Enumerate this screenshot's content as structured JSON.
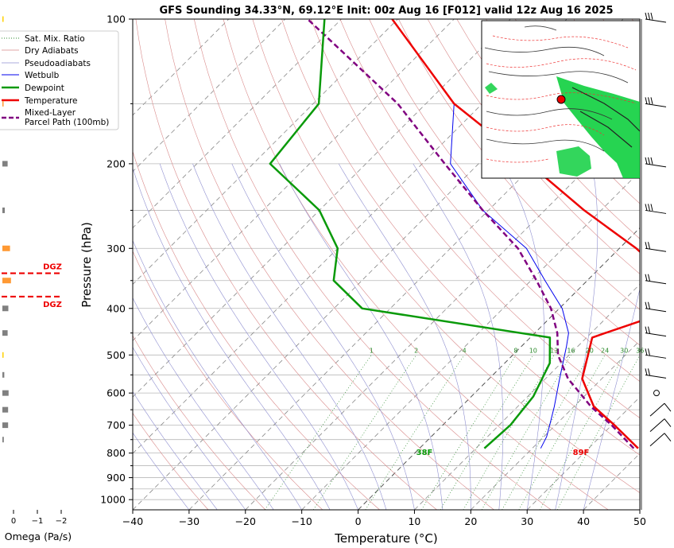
{
  "title": "GFS Sounding 34.33°N, 69.12°E Init: 00z Aug 16 [F012] valid 12z Aug 16 2025",
  "chart_data": {
    "type": "line",
    "chart_kind": "skew-T log-P sounding",
    "xlabel": "Temperature (°C)",
    "ylabel": "Pressure (hPa)",
    "x_ticks": [
      -40,
      -30,
      -20,
      -10,
      0,
      10,
      20,
      30,
      40,
      50
    ],
    "x_tick_labels": [
      "−40",
      "−30",
      "−20",
      "−10",
      "0",
      "10",
      "20",
      "30",
      "40",
      "50"
    ],
    "y_ticks": [
      100,
      200,
      300,
      400,
      500,
      600,
      700,
      800,
      900,
      1000
    ],
    "y_tick_labels": [
      "100",
      "200",
      "300",
      "400",
      "500",
      "600",
      "700",
      "800",
      "900",
      "1000"
    ],
    "y_minor_ticks": [
      150,
      250,
      350,
      450,
      550,
      650,
      750,
      850,
      950
    ],
    "xlim": [
      -40,
      50
    ],
    "ylim": [
      1050,
      100
    ],
    "y_scale": "log",
    "grid": true,
    "legend_position": "upper-left",
    "legend": [
      {
        "label": "Sat. Mix. Ratio",
        "color": "#2e8b2e",
        "style": "dotted"
      },
      {
        "label": "Dry Adiabats",
        "color": "#d98a8a",
        "style": "solid-thin"
      },
      {
        "label": "Pseudoadiabats",
        "color": "#8f8fd0",
        "style": "solid-thin"
      },
      {
        "label": "Wetbulb",
        "color": "#0000ee",
        "style": "solid"
      },
      {
        "label": "Dewpoint",
        "color": "#0a9a0a",
        "style": "solid-thick"
      },
      {
        "label": "Temperature",
        "color": "#ee0000",
        "style": "solid-thick"
      },
      {
        "label": "Mixed-Layer\nParcel Path (100mb)",
        "color": "#800080",
        "style": "dashed"
      }
    ],
    "series": [
      {
        "name": "Temperature",
        "color": "#ee0000",
        "points": [
          [
            782,
            38.8
          ],
          [
            700,
            30.5
          ],
          [
            640,
            23.5
          ],
          [
            560,
            16.5
          ],
          [
            460,
            11
          ],
          [
            450,
            12.5
          ],
          [
            400,
            21
          ],
          [
            350,
            15
          ],
          [
            300,
            3
          ],
          [
            250,
            -13
          ],
          [
            200,
            -31
          ],
          [
            150,
            -55
          ],
          [
            100,
            -81
          ]
        ]
      },
      {
        "name": "Dewpoint",
        "color": "#0a9a0a",
        "points": [
          [
            782,
            11.5
          ],
          [
            700,
            12
          ],
          [
            610,
            11
          ],
          [
            520,
            8
          ],
          [
            460,
            3.5
          ],
          [
            400,
            -35
          ],
          [
            350,
            -45
          ],
          [
            300,
            -50
          ],
          [
            250,
            -60
          ],
          [
            200,
            -77
          ],
          [
            150,
            -79
          ],
          [
            100,
            -93
          ]
        ]
      },
      {
        "name": "Wetbulb",
        "color": "#0000ee",
        "points": [
          [
            782,
            21.5
          ],
          [
            740,
            20.5
          ],
          [
            700,
            19
          ],
          [
            640,
            16.5
          ],
          [
            560,
            12.5
          ],
          [
            480,
            8
          ],
          [
            450,
            6
          ],
          [
            400,
            0.5
          ],
          [
            350,
            -7.5
          ],
          [
            300,
            -16.5
          ],
          [
            250,
            -31
          ],
          [
            200,
            -45
          ],
          [
            150,
            -55
          ]
        ]
      },
      {
        "name": "Mixed-Layer Parcel Path (100mb)",
        "color": "#800080",
        "points": [
          [
            782,
            38
          ],
          [
            700,
            30
          ],
          [
            640,
            23
          ],
          [
            560,
            14
          ],
          [
            500,
            8
          ],
          [
            450,
            4
          ],
          [
            400,
            -1.5
          ],
          [
            350,
            -9
          ],
          [
            300,
            -18
          ],
          [
            250,
            -31
          ],
          [
            200,
            -46
          ],
          [
            150,
            -65
          ],
          [
            100,
            -96
          ]
        ]
      }
    ],
    "mixing_ratio_labels": [
      "1",
      "2",
      "4",
      "8",
      "10",
      "13",
      "16",
      "20",
      "24",
      "30",
      "36"
    ],
    "annotations": [
      {
        "text": "38F",
        "pressure": 800,
        "color": "#0a9a0a"
      },
      {
        "text": "89F",
        "pressure": 800,
        "color": "#ee0000"
      }
    ],
    "omega_panel": {
      "xlabel": "Omega (Pa/s)",
      "x_ticks": [
        0,
        -1,
        -2
      ],
      "x_tick_labels": [
        "0",
        "−1",
        "−2"
      ],
      "dgz_label": "DGZ",
      "bars": [
        {
          "p": 100,
          "omega": -0.05,
          "color": "#ffd000"
        },
        {
          "p": 150,
          "omega": -0.03,
          "color": "#ff9933"
        },
        {
          "p": 200,
          "omega": -0.22,
          "color": "#808080"
        },
        {
          "p": 250,
          "omega": -0.1,
          "color": "#808080"
        },
        {
          "p": 300,
          "omega": -0.32,
          "color": "#ff9933"
        },
        {
          "p": 350,
          "omega": -0.36,
          "color": "#ff9933"
        },
        {
          "p": 400,
          "omega": -0.25,
          "color": "#808080"
        },
        {
          "p": 450,
          "omega": -0.22,
          "color": "#808080"
        },
        {
          "p": 500,
          "omega": -0.02,
          "color": "#ffd000"
        },
        {
          "p": 550,
          "omega": -0.08,
          "color": "#808080"
        },
        {
          "p": 600,
          "omega": -0.26,
          "color": "#808080"
        },
        {
          "p": 650,
          "omega": -0.24,
          "color": "#808080"
        },
        {
          "p": 700,
          "omega": -0.24,
          "color": "#808080"
        },
        {
          "p": 750,
          "omega": -0.06,
          "color": "#808080"
        }
      ],
      "dgz_pressures": [
        338,
        378
      ]
    },
    "wind_barb_pressures": [
      100,
      150,
      200,
      250,
      300,
      350,
      400,
      450,
      500,
      550,
      600,
      650,
      700,
      750
    ]
  },
  "inset_map": {
    "marker_color": "#ee0000",
    "land_fill": "#00cc33"
  }
}
